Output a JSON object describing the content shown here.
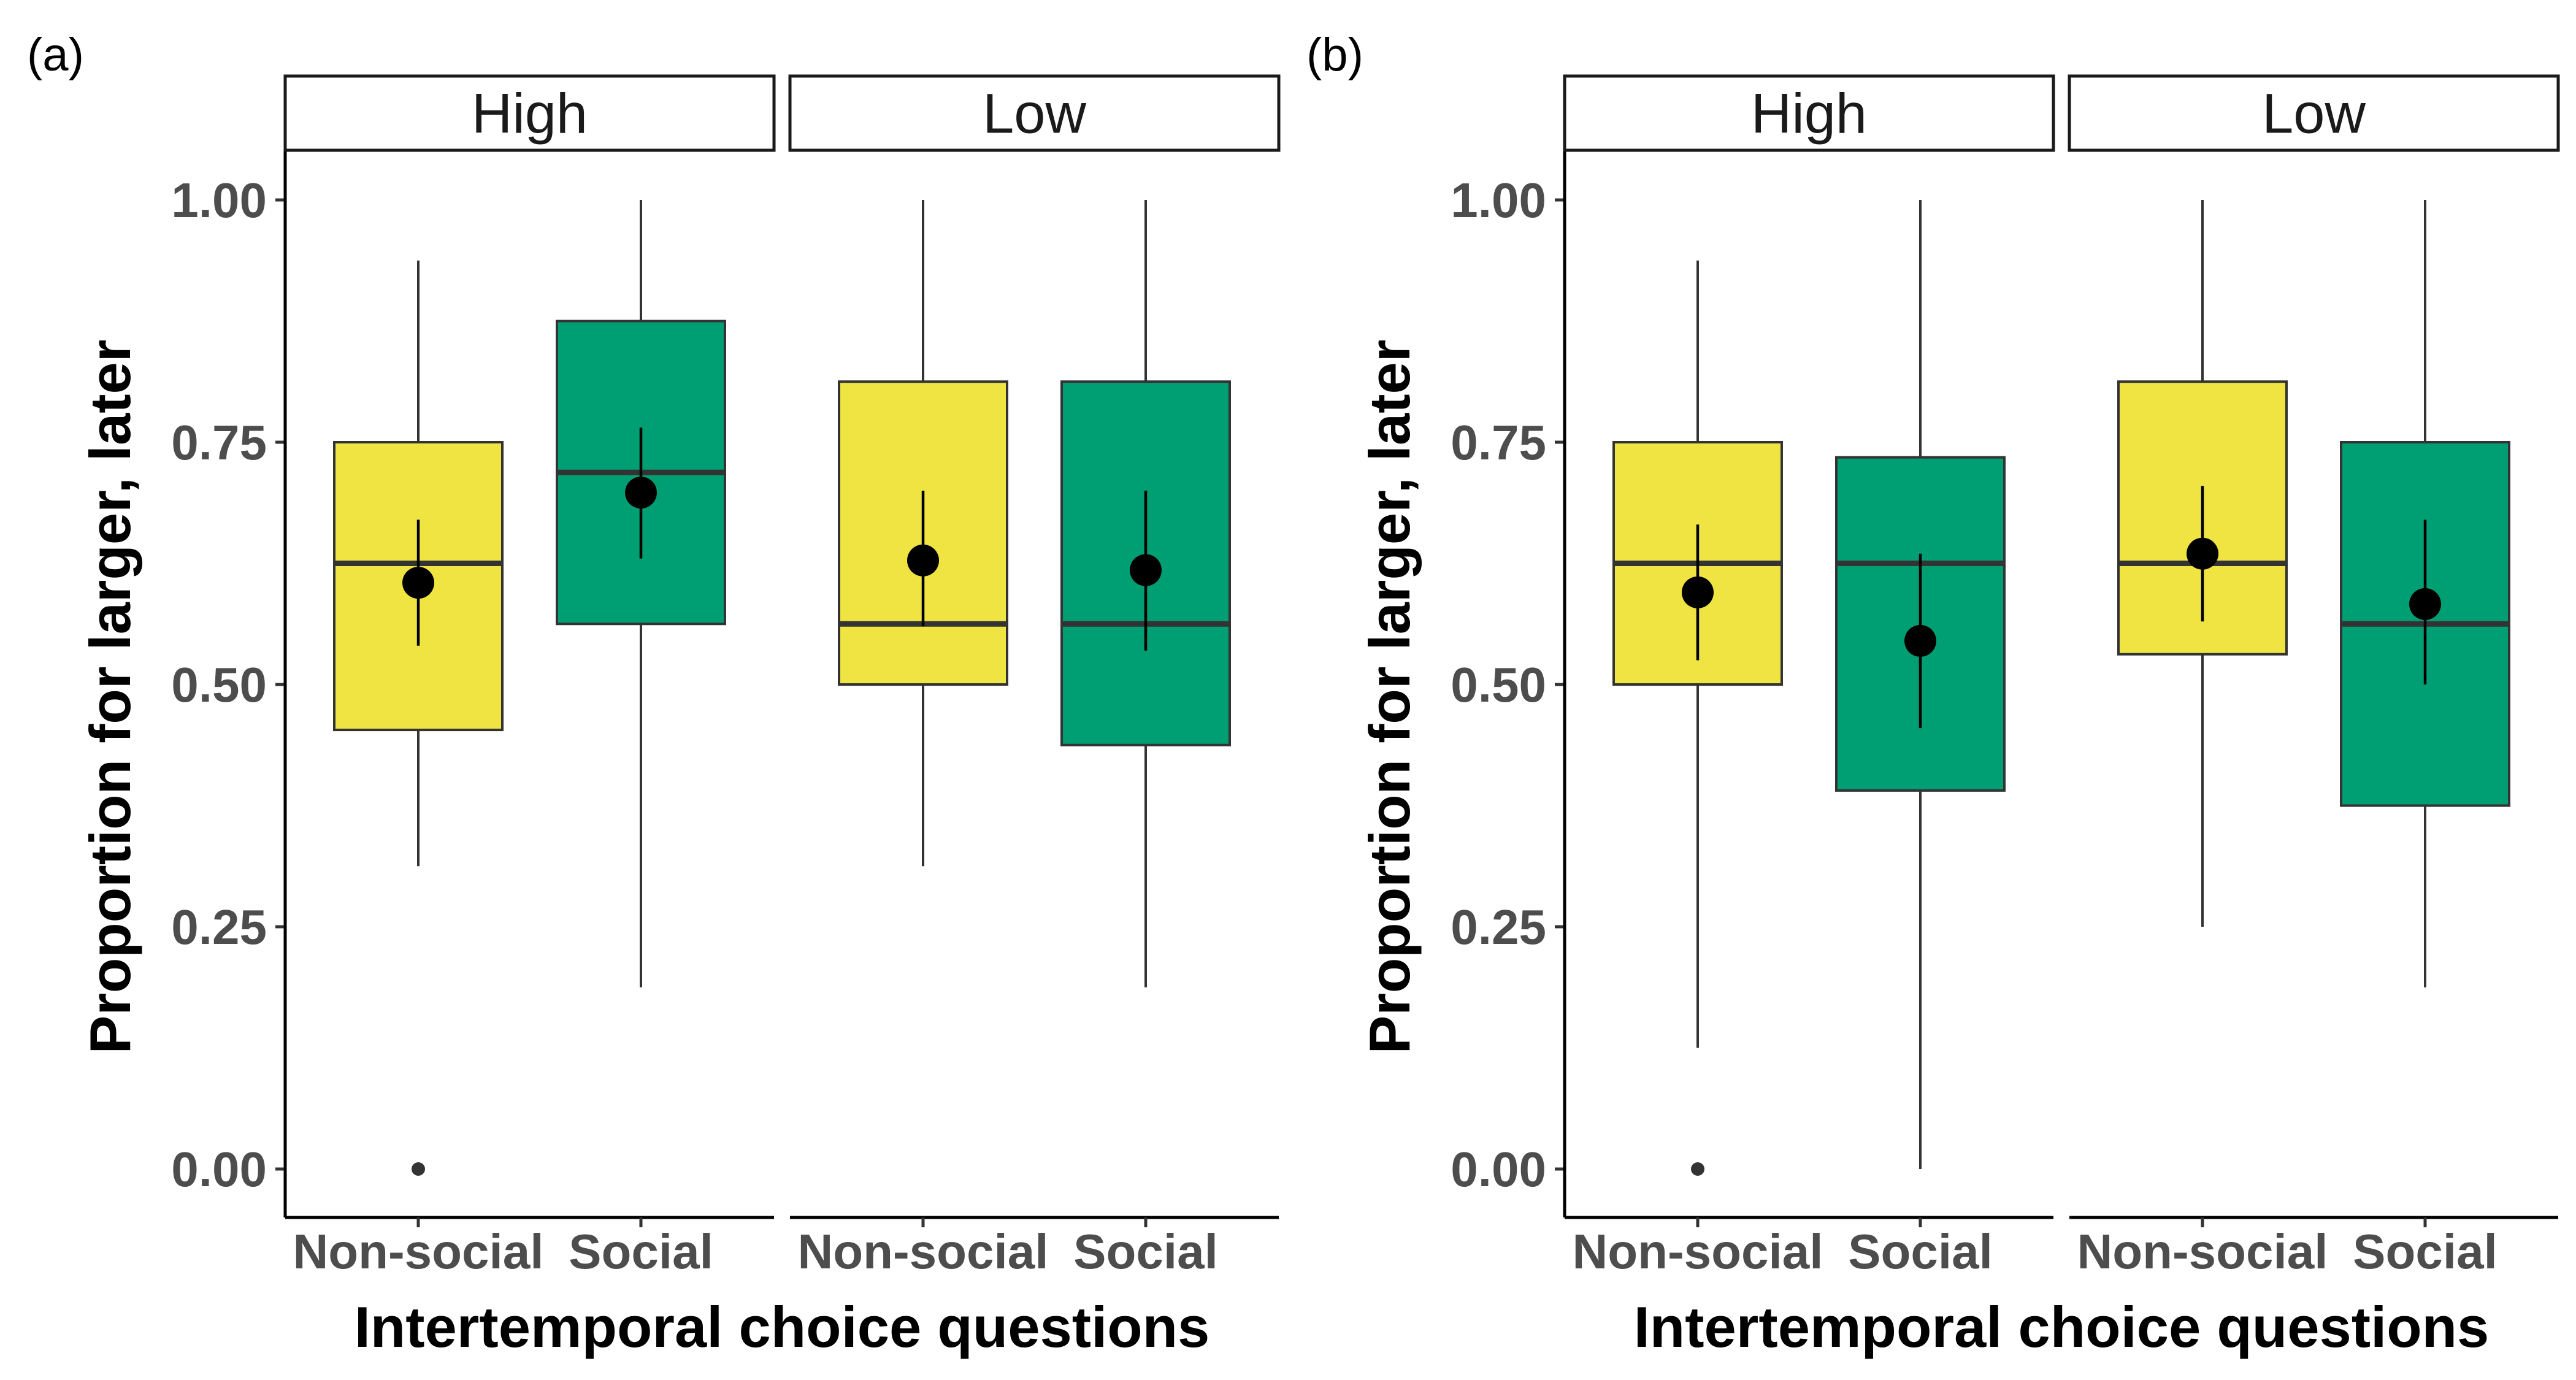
{
  "chart_data": [
    {
      "panel_label": "(a)",
      "type": "box",
      "ylabel": "Proportion for larger, later",
      "xlabel": "Intertemporal choice questions",
      "ylim": [
        -0.05,
        1.05
      ],
      "yticks": [
        0,
        0.25,
        0.5,
        0.75,
        1
      ],
      "ytick_labels": [
        "0.00",
        "0.25",
        "0.50",
        "0.75",
        "1.00"
      ],
      "categories": [
        "Non-social",
        "Social"
      ],
      "colors": {
        "Non-social": "#f0e442",
        "Social": "#009e73"
      },
      "grid": false,
      "legend": "none",
      "facets": [
        {
          "label": "High",
          "boxes": [
            {
              "category": "Non-social",
              "whisker_low": 0.3125,
              "q1": 0.4531,
              "median": 0.625,
              "q3": 0.75,
              "whisker_high": 0.9375,
              "outliers": [
                0.0
              ],
              "mean": 0.605,
              "ci": [
                0.54,
                0.67
              ]
            },
            {
              "category": "Social",
              "whisker_low": 0.1875,
              "q1": 0.5625,
              "median": 0.7188,
              "q3": 0.875,
              "whisker_high": 1.0,
              "outliers": [],
              "mean": 0.698,
              "ci": [
                0.63,
                0.765
              ]
            }
          ]
        },
        {
          "label": "Low",
          "boxes": [
            {
              "category": "Non-social",
              "whisker_low": 0.3125,
              "q1": 0.5,
              "median": 0.5625,
              "q3": 0.8125,
              "whisker_high": 1.0,
              "outliers": [],
              "mean": 0.628,
              "ci": [
                0.56,
                0.7
              ]
            },
            {
              "category": "Social",
              "whisker_low": 0.1875,
              "q1": 0.4375,
              "median": 0.5625,
              "q3": 0.8125,
              "whisker_high": 1.0,
              "outliers": [],
              "mean": 0.618,
              "ci": [
                0.535,
                0.7
              ]
            }
          ]
        }
      ]
    },
    {
      "panel_label": "(b)",
      "type": "box",
      "ylabel": "Proportion for larger, later",
      "xlabel": "Intertemporal choice questions",
      "ylim": [
        -0.05,
        1.05
      ],
      "yticks": [
        0,
        0.25,
        0.5,
        0.75,
        1
      ],
      "ytick_labels": [
        "0.00",
        "0.25",
        "0.50",
        "0.75",
        "1.00"
      ],
      "categories": [
        "Non-social",
        "Social"
      ],
      "colors": {
        "Non-social": "#f0e442",
        "Social": "#009e73"
      },
      "grid": false,
      "legend": "none",
      "facets": [
        {
          "label": "High",
          "boxes": [
            {
              "category": "Non-social",
              "whisker_low": 0.125,
              "q1": 0.5,
              "median": 0.625,
              "q3": 0.75,
              "whisker_high": 0.9375,
              "outliers": [
                0.0
              ],
              "mean": 0.595,
              "ci": [
                0.525,
                0.665
              ]
            },
            {
              "category": "Social",
              "whisker_low": 0.0,
              "q1": 0.3906,
              "median": 0.625,
              "q3": 0.7344,
              "whisker_high": 1.0,
              "outliers": [],
              "mean": 0.545,
              "ci": [
                0.455,
                0.635
              ]
            }
          ]
        },
        {
          "label": "Low",
          "boxes": [
            {
              "category": "Non-social",
              "whisker_low": 0.25,
              "q1": 0.5312,
              "median": 0.625,
              "q3": 0.8125,
              "whisker_high": 1.0,
              "outliers": [],
              "mean": 0.635,
              "ci": [
                0.565,
                0.705
              ]
            },
            {
              "category": "Social",
              "whisker_low": 0.1875,
              "q1": 0.375,
              "median": 0.5625,
              "q3": 0.75,
              "whisker_high": 1.0,
              "outliers": [],
              "mean": 0.583,
              "ci": [
                0.5,
                0.67
              ]
            }
          ]
        }
      ]
    }
  ]
}
